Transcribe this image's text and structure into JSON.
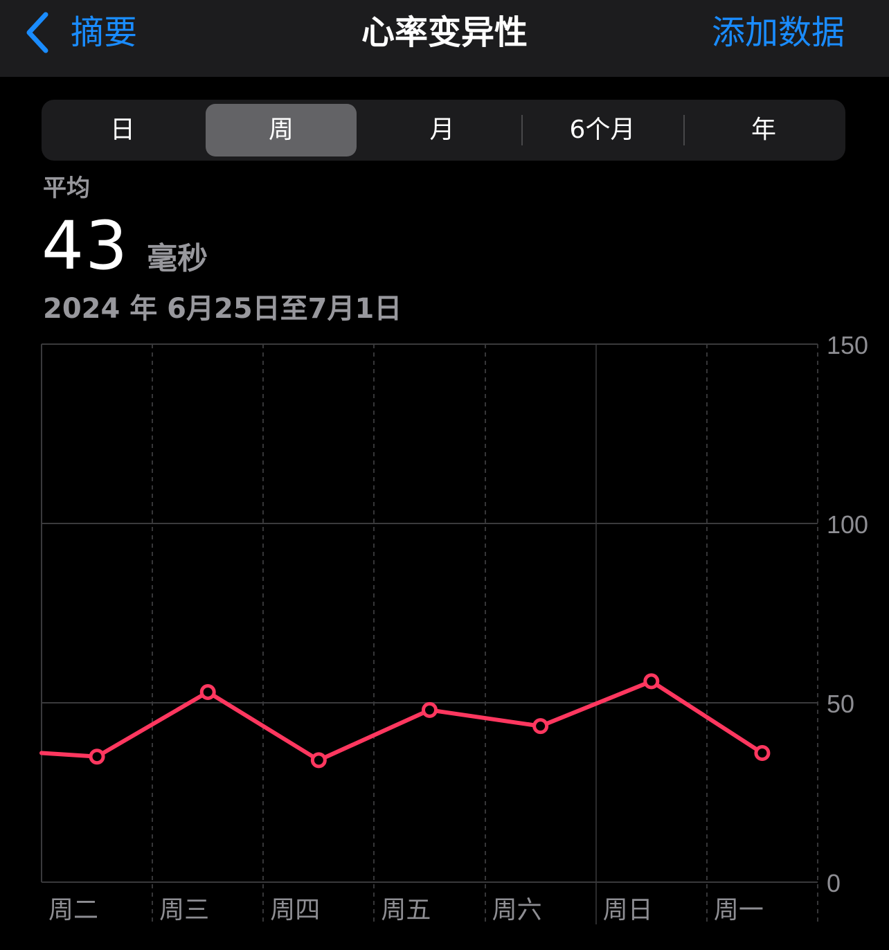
{
  "nav": {
    "back_label": "摘要",
    "title": "心率变异性",
    "action_label": "添加数据"
  },
  "segments": [
    {
      "label": "日",
      "active": false
    },
    {
      "label": "周",
      "active": true
    },
    {
      "label": "月",
      "active": false
    },
    {
      "label": "6个月",
      "active": false
    },
    {
      "label": "年",
      "active": false
    }
  ],
  "summary": {
    "label": "平均",
    "value": "43",
    "unit": "毫秒",
    "date_range": "2024 年 6月25日至7月1日"
  },
  "colors": {
    "accent_blue": "#1a8cff",
    "series": "#ff375f",
    "background": "#000000",
    "navbar": "#1c1c1e"
  },
  "icons": {
    "back": "chevron-left-icon"
  },
  "chart_data": {
    "type": "line",
    "categories": [
      "周二",
      "周三",
      "周四",
      "周五",
      "周六",
      "周日",
      "周一"
    ],
    "series": [
      {
        "values": [
          35,
          53,
          34,
          48,
          43.5,
          56,
          36
        ]
      }
    ],
    "prev_value": 36,
    "ylim": [
      0,
      150
    ],
    "yticks": [
      0,
      50,
      100,
      150
    ],
    "grid": true,
    "y_axis_position": "right"
  }
}
